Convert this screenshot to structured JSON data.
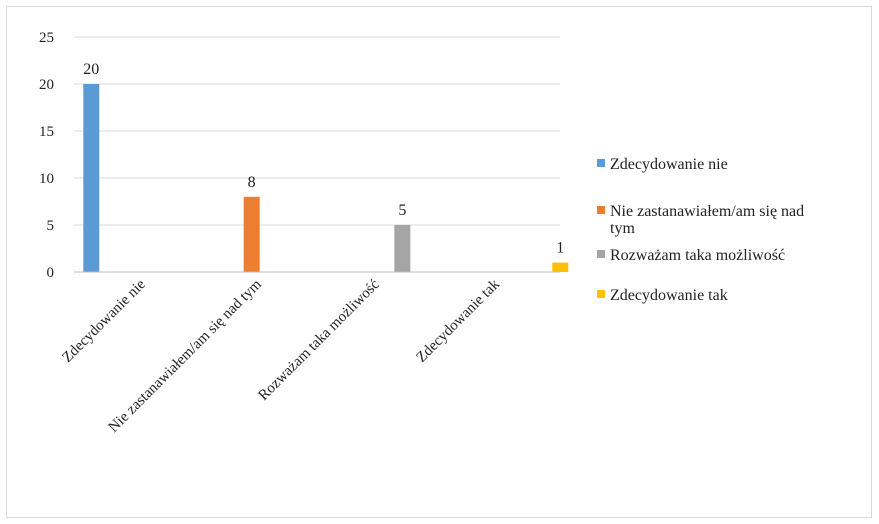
{
  "chart_data": {
    "type": "bar",
    "title": "",
    "xlabel": "",
    "ylabel": "",
    "ylim": [
      0,
      25
    ],
    "yticks": [
      0,
      5,
      10,
      15,
      20,
      25
    ],
    "grid": true,
    "legend_position": "right",
    "categories": [
      "Zdecydowanie nie",
      "Nie zastanawiałem/am się nad tym",
      "Rozważam taka możliwość",
      "Zdecydowanie tak"
    ],
    "series": [
      {
        "name": "Zdecydowanie nie",
        "color": "#5B9BD5",
        "values": [
          20,
          null,
          null,
          null
        ]
      },
      {
        "name": "Nie zastanawiałem/am się nad tym",
        "color": "#ED7D31",
        "values": [
          null,
          8,
          null,
          null
        ]
      },
      {
        "name": "Rozważam taka możliwość",
        "color": "#A5A5A5",
        "values": [
          null,
          null,
          5,
          null
        ]
      },
      {
        "name": "Zdecydowanie tak",
        "color": "#FFC000",
        "values": [
          null,
          null,
          null,
          1
        ]
      }
    ]
  }
}
